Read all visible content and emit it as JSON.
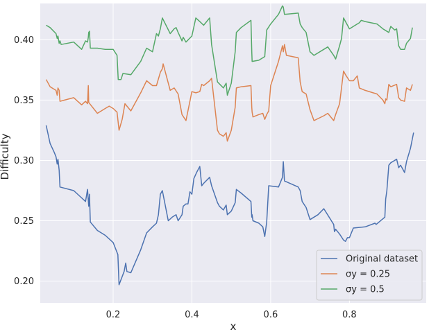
{
  "chart_data": {
    "type": "line",
    "xlabel": "x",
    "ylabel": "Difficulty",
    "xlim": [
      0.015,
      0.995
    ],
    "ylim": [
      0.182,
      0.43
    ],
    "xticks": [
      0.2,
      0.4,
      0.6,
      0.8
    ],
    "xtick_labels": [
      "0.2",
      "0.4",
      "0.6",
      "0.8"
    ],
    "yticks": [
      0.2,
      0.25,
      0.3,
      0.35,
      0.4
    ],
    "ytick_labels": [
      "0.20",
      "0.25",
      "0.30",
      "0.35",
      "0.40"
    ],
    "grid": true,
    "legend_position": "lower-right",
    "series": [
      {
        "name": "Original dataset",
        "color": "#4c72b0",
        "points": [
          [
            0.03,
            0.329
          ],
          [
            0.04,
            0.314
          ],
          [
            0.05,
            0.307
          ],
          [
            0.055,
            0.303
          ],
          [
            0.058,
            0.297
          ],
          [
            0.06,
            0.301
          ],
          [
            0.063,
            0.292
          ],
          [
            0.065,
            0.278
          ],
          [
            0.1,
            0.275
          ],
          [
            0.12,
            0.269
          ],
          [
            0.13,
            0.266
          ],
          [
            0.135,
            0.276
          ],
          [
            0.138,
            0.262
          ],
          [
            0.14,
            0.272
          ],
          [
            0.142,
            0.249
          ],
          [
            0.16,
            0.242
          ],
          [
            0.18,
            0.238
          ],
          [
            0.2,
            0.232
          ],
          [
            0.212,
            0.222
          ],
          [
            0.215,
            0.197
          ],
          [
            0.228,
            0.208
          ],
          [
            0.232,
            0.215
          ],
          [
            0.235,
            0.208
          ],
          [
            0.245,
            0.207
          ],
          [
            0.27,
            0.226
          ],
          [
            0.285,
            0.24
          ],
          [
            0.3,
            0.245
          ],
          [
            0.31,
            0.248
          ],
          [
            0.315,
            0.255
          ],
          [
            0.32,
            0.272
          ],
          [
            0.325,
            0.275
          ],
          [
            0.34,
            0.25
          ],
          [
            0.35,
            0.253
          ],
          [
            0.36,
            0.255
          ],
          [
            0.365,
            0.25
          ],
          [
            0.375,
            0.255
          ],
          [
            0.378,
            0.262
          ],
          [
            0.385,
            0.264
          ],
          [
            0.39,
            0.264
          ],
          [
            0.395,
            0.274
          ],
          [
            0.4,
            0.272
          ],
          [
            0.405,
            0.285
          ],
          [
            0.412,
            0.29
          ],
          [
            0.42,
            0.295
          ],
          [
            0.425,
            0.279
          ],
          [
            0.43,
            0.281
          ],
          [
            0.445,
            0.286
          ],
          [
            0.45,
            0.279
          ],
          [
            0.465,
            0.265
          ],
          [
            0.47,
            0.262
          ],
          [
            0.48,
            0.259
          ],
          [
            0.487,
            0.263
          ],
          [
            0.49,
            0.255
          ],
          [
            0.5,
            0.258
          ],
          [
            0.51,
            0.265
          ],
          [
            0.513,
            0.276
          ],
          [
            0.525,
            0.273
          ],
          [
            0.55,
            0.266
          ],
          [
            0.552,
            0.253
          ],
          [
            0.553,
            0.255
          ],
          [
            0.555,
            0.25
          ],
          [
            0.57,
            0.248
          ],
          [
            0.58,
            0.245
          ],
          [
            0.585,
            0.237
          ],
          [
            0.59,
            0.249
          ],
          [
            0.595,
            0.279
          ],
          [
            0.62,
            0.278
          ],
          [
            0.63,
            0.286
          ],
          [
            0.632,
            0.299
          ],
          [
            0.635,
            0.283
          ],
          [
            0.67,
            0.278
          ],
          [
            0.675,
            0.275
          ],
          [
            0.68,
            0.266
          ],
          [
            0.69,
            0.261
          ],
          [
            0.7,
            0.251
          ],
          [
            0.72,
            0.255
          ],
          [
            0.735,
            0.26
          ],
          [
            0.76,
            0.247
          ],
          [
            0.762,
            0.241
          ],
          [
            0.765,
            0.243
          ],
          [
            0.775,
            0.239
          ],
          [
            0.785,
            0.234
          ],
          [
            0.79,
            0.233
          ],
          [
            0.795,
            0.236
          ],
          [
            0.8,
            0.236
          ],
          [
            0.81,
            0.244
          ],
          [
            0.84,
            0.245
          ],
          [
            0.865,
            0.248
          ],
          [
            0.868,
            0.247
          ],
          [
            0.89,
            0.253
          ],
          [
            0.892,
            0.268
          ],
          [
            0.895,
            0.275
          ],
          [
            0.9,
            0.296
          ],
          [
            0.905,
            0.298
          ],
          [
            0.92,
            0.301
          ],
          [
            0.925,
            0.294
          ],
          [
            0.93,
            0.296
          ],
          [
            0.935,
            0.293
          ],
          [
            0.94,
            0.29
          ],
          [
            0.945,
            0.299
          ],
          [
            0.955,
            0.31
          ],
          [
            0.963,
            0.323
          ]
        ]
      },
      {
        "name": "σy = 0.25",
        "color": "#dd8452",
        "points": [
          [
            0.03,
            0.367
          ],
          [
            0.04,
            0.361
          ],
          [
            0.055,
            0.358
          ],
          [
            0.058,
            0.354
          ],
          [
            0.06,
            0.36
          ],
          [
            0.063,
            0.358
          ],
          [
            0.065,
            0.349
          ],
          [
            0.1,
            0.352
          ],
          [
            0.12,
            0.346
          ],
          [
            0.13,
            0.349
          ],
          [
            0.135,
            0.347
          ],
          [
            0.137,
            0.362
          ],
          [
            0.138,
            0.348
          ],
          [
            0.16,
            0.339
          ],
          [
            0.18,
            0.343
          ],
          [
            0.19,
            0.345
          ],
          [
            0.2,
            0.343
          ],
          [
            0.21,
            0.34
          ],
          [
            0.215,
            0.325
          ],
          [
            0.223,
            0.334
          ],
          [
            0.23,
            0.347
          ],
          [
            0.245,
            0.341
          ],
          [
            0.27,
            0.356
          ],
          [
            0.285,
            0.366
          ],
          [
            0.3,
            0.362
          ],
          [
            0.31,
            0.362
          ],
          [
            0.32,
            0.373
          ],
          [
            0.325,
            0.376
          ],
          [
            0.327,
            0.38
          ],
          [
            0.345,
            0.358
          ],
          [
            0.355,
            0.36
          ],
          [
            0.365,
            0.355
          ],
          [
            0.375,
            0.338
          ],
          [
            0.385,
            0.333
          ],
          [
            0.4,
            0.357
          ],
          [
            0.41,
            0.356
          ],
          [
            0.42,
            0.357
          ],
          [
            0.425,
            0.363
          ],
          [
            0.43,
            0.362
          ],
          [
            0.445,
            0.366
          ],
          [
            0.45,
            0.368
          ],
          [
            0.465,
            0.325
          ],
          [
            0.47,
            0.322
          ],
          [
            0.48,
            0.32
          ],
          [
            0.487,
            0.323
          ],
          [
            0.49,
            0.316
          ],
          [
            0.5,
            0.325
          ],
          [
            0.51,
            0.344
          ],
          [
            0.513,
            0.36
          ],
          [
            0.525,
            0.361
          ],
          [
            0.55,
            0.362
          ],
          [
            0.552,
            0.344
          ],
          [
            0.553,
            0.34
          ],
          [
            0.555,
            0.336
          ],
          [
            0.57,
            0.338
          ],
          [
            0.58,
            0.339
          ],
          [
            0.585,
            0.334
          ],
          [
            0.59,
            0.338
          ],
          [
            0.595,
            0.341
          ],
          [
            0.6,
            0.362
          ],
          [
            0.62,
            0.382
          ],
          [
            0.63,
            0.395
          ],
          [
            0.632,
            0.39
          ],
          [
            0.635,
            0.396
          ],
          [
            0.64,
            0.387
          ],
          [
            0.67,
            0.385
          ],
          [
            0.675,
            0.365
          ],
          [
            0.68,
            0.357
          ],
          [
            0.69,
            0.355
          ],
          [
            0.7,
            0.342
          ],
          [
            0.71,
            0.333
          ],
          [
            0.735,
            0.337
          ],
          [
            0.745,
            0.339
          ],
          [
            0.76,
            0.333
          ],
          [
            0.765,
            0.338
          ],
          [
            0.775,
            0.347
          ],
          [
            0.785,
            0.374
          ],
          [
            0.79,
            0.371
          ],
          [
            0.8,
            0.366
          ],
          [
            0.81,
            0.366
          ],
          [
            0.82,
            0.37
          ],
          [
            0.825,
            0.36
          ],
          [
            0.84,
            0.358
          ],
          [
            0.87,
            0.355
          ],
          [
            0.885,
            0.35
          ],
          [
            0.89,
            0.347
          ],
          [
            0.892,
            0.351
          ],
          [
            0.895,
            0.35
          ],
          [
            0.9,
            0.363
          ],
          [
            0.905,
            0.361
          ],
          [
            0.92,
            0.363
          ],
          [
            0.925,
            0.352
          ],
          [
            0.93,
            0.35
          ],
          [
            0.94,
            0.349
          ],
          [
            0.945,
            0.36
          ],
          [
            0.955,
            0.358
          ],
          [
            0.96,
            0.363
          ]
        ]
      },
      {
        "name": "σy = 0.5",
        "color": "#55a868",
        "points": [
          [
            0.03,
            0.412
          ],
          [
            0.04,
            0.41
          ],
          [
            0.055,
            0.405
          ],
          [
            0.058,
            0.401
          ],
          [
            0.06,
            0.403
          ],
          [
            0.063,
            0.397
          ],
          [
            0.065,
            0.399
          ],
          [
            0.068,
            0.396
          ],
          [
            0.1,
            0.398
          ],
          [
            0.12,
            0.392
          ],
          [
            0.13,
            0.399
          ],
          [
            0.135,
            0.398
          ],
          [
            0.137,
            0.402
          ],
          [
            0.138,
            0.406
          ],
          [
            0.14,
            0.407
          ],
          [
            0.142,
            0.393
          ],
          [
            0.16,
            0.393
          ],
          [
            0.18,
            0.392
          ],
          [
            0.2,
            0.392
          ],
          [
            0.21,
            0.387
          ],
          [
            0.213,
            0.367
          ],
          [
            0.22,
            0.367
          ],
          [
            0.225,
            0.372
          ],
          [
            0.245,
            0.371
          ],
          [
            0.27,
            0.382
          ],
          [
            0.285,
            0.393
          ],
          [
            0.3,
            0.39
          ],
          [
            0.31,
            0.405
          ],
          [
            0.315,
            0.403
          ],
          [
            0.32,
            0.409
          ],
          [
            0.325,
            0.418
          ],
          [
            0.345,
            0.405
          ],
          [
            0.355,
            0.409
          ],
          [
            0.36,
            0.41
          ],
          [
            0.365,
            0.406
          ],
          [
            0.375,
            0.399
          ],
          [
            0.378,
            0.402
          ],
          [
            0.385,
            0.398
          ],
          [
            0.4,
            0.403
          ],
          [
            0.41,
            0.418
          ],
          [
            0.42,
            0.415
          ],
          [
            0.43,
            0.412
          ],
          [
            0.445,
            0.418
          ],
          [
            0.45,
            0.396
          ],
          [
            0.465,
            0.365
          ],
          [
            0.48,
            0.36
          ],
          [
            0.487,
            0.364
          ],
          [
            0.49,
            0.354
          ],
          [
            0.5,
            0.364
          ],
          [
            0.51,
            0.39
          ],
          [
            0.513,
            0.406
          ],
          [
            0.525,
            0.41
          ],
          [
            0.55,
            0.416
          ],
          [
            0.552,
            0.39
          ],
          [
            0.553,
            0.382
          ],
          [
            0.57,
            0.383
          ],
          [
            0.58,
            0.385
          ],
          [
            0.585,
            0.386
          ],
          [
            0.59,
            0.408
          ],
          [
            0.6,
            0.413
          ],
          [
            0.62,
            0.421
          ],
          [
            0.63,
            0.428
          ],
          [
            0.632,
            0.427
          ],
          [
            0.635,
            0.421
          ],
          [
            0.67,
            0.422
          ],
          [
            0.675,
            0.413
          ],
          [
            0.68,
            0.41
          ],
          [
            0.69,
            0.406
          ],
          [
            0.7,
            0.39
          ],
          [
            0.71,
            0.387
          ],
          [
            0.735,
            0.392
          ],
          [
            0.745,
            0.394
          ],
          [
            0.76,
            0.387
          ],
          [
            0.765,
            0.384
          ],
          [
            0.775,
            0.395
          ],
          [
            0.78,
            0.401
          ],
          [
            0.785,
            0.418
          ],
          [
            0.79,
            0.415
          ],
          [
            0.8,
            0.409
          ],
          [
            0.81,
            0.411
          ],
          [
            0.82,
            0.413
          ],
          [
            0.825,
            0.414
          ],
          [
            0.83,
            0.416
          ],
          [
            0.84,
            0.415
          ],
          [
            0.87,
            0.413
          ],
          [
            0.885,
            0.409
          ],
          [
            0.89,
            0.408
          ],
          [
            0.9,
            0.406
          ],
          [
            0.905,
            0.411
          ],
          [
            0.915,
            0.408
          ],
          [
            0.92,
            0.409
          ],
          [
            0.925,
            0.395
          ],
          [
            0.93,
            0.392
          ],
          [
            0.94,
            0.392
          ],
          [
            0.945,
            0.397
          ],
          [
            0.955,
            0.401
          ],
          [
            0.96,
            0.41
          ]
        ]
      }
    ]
  }
}
